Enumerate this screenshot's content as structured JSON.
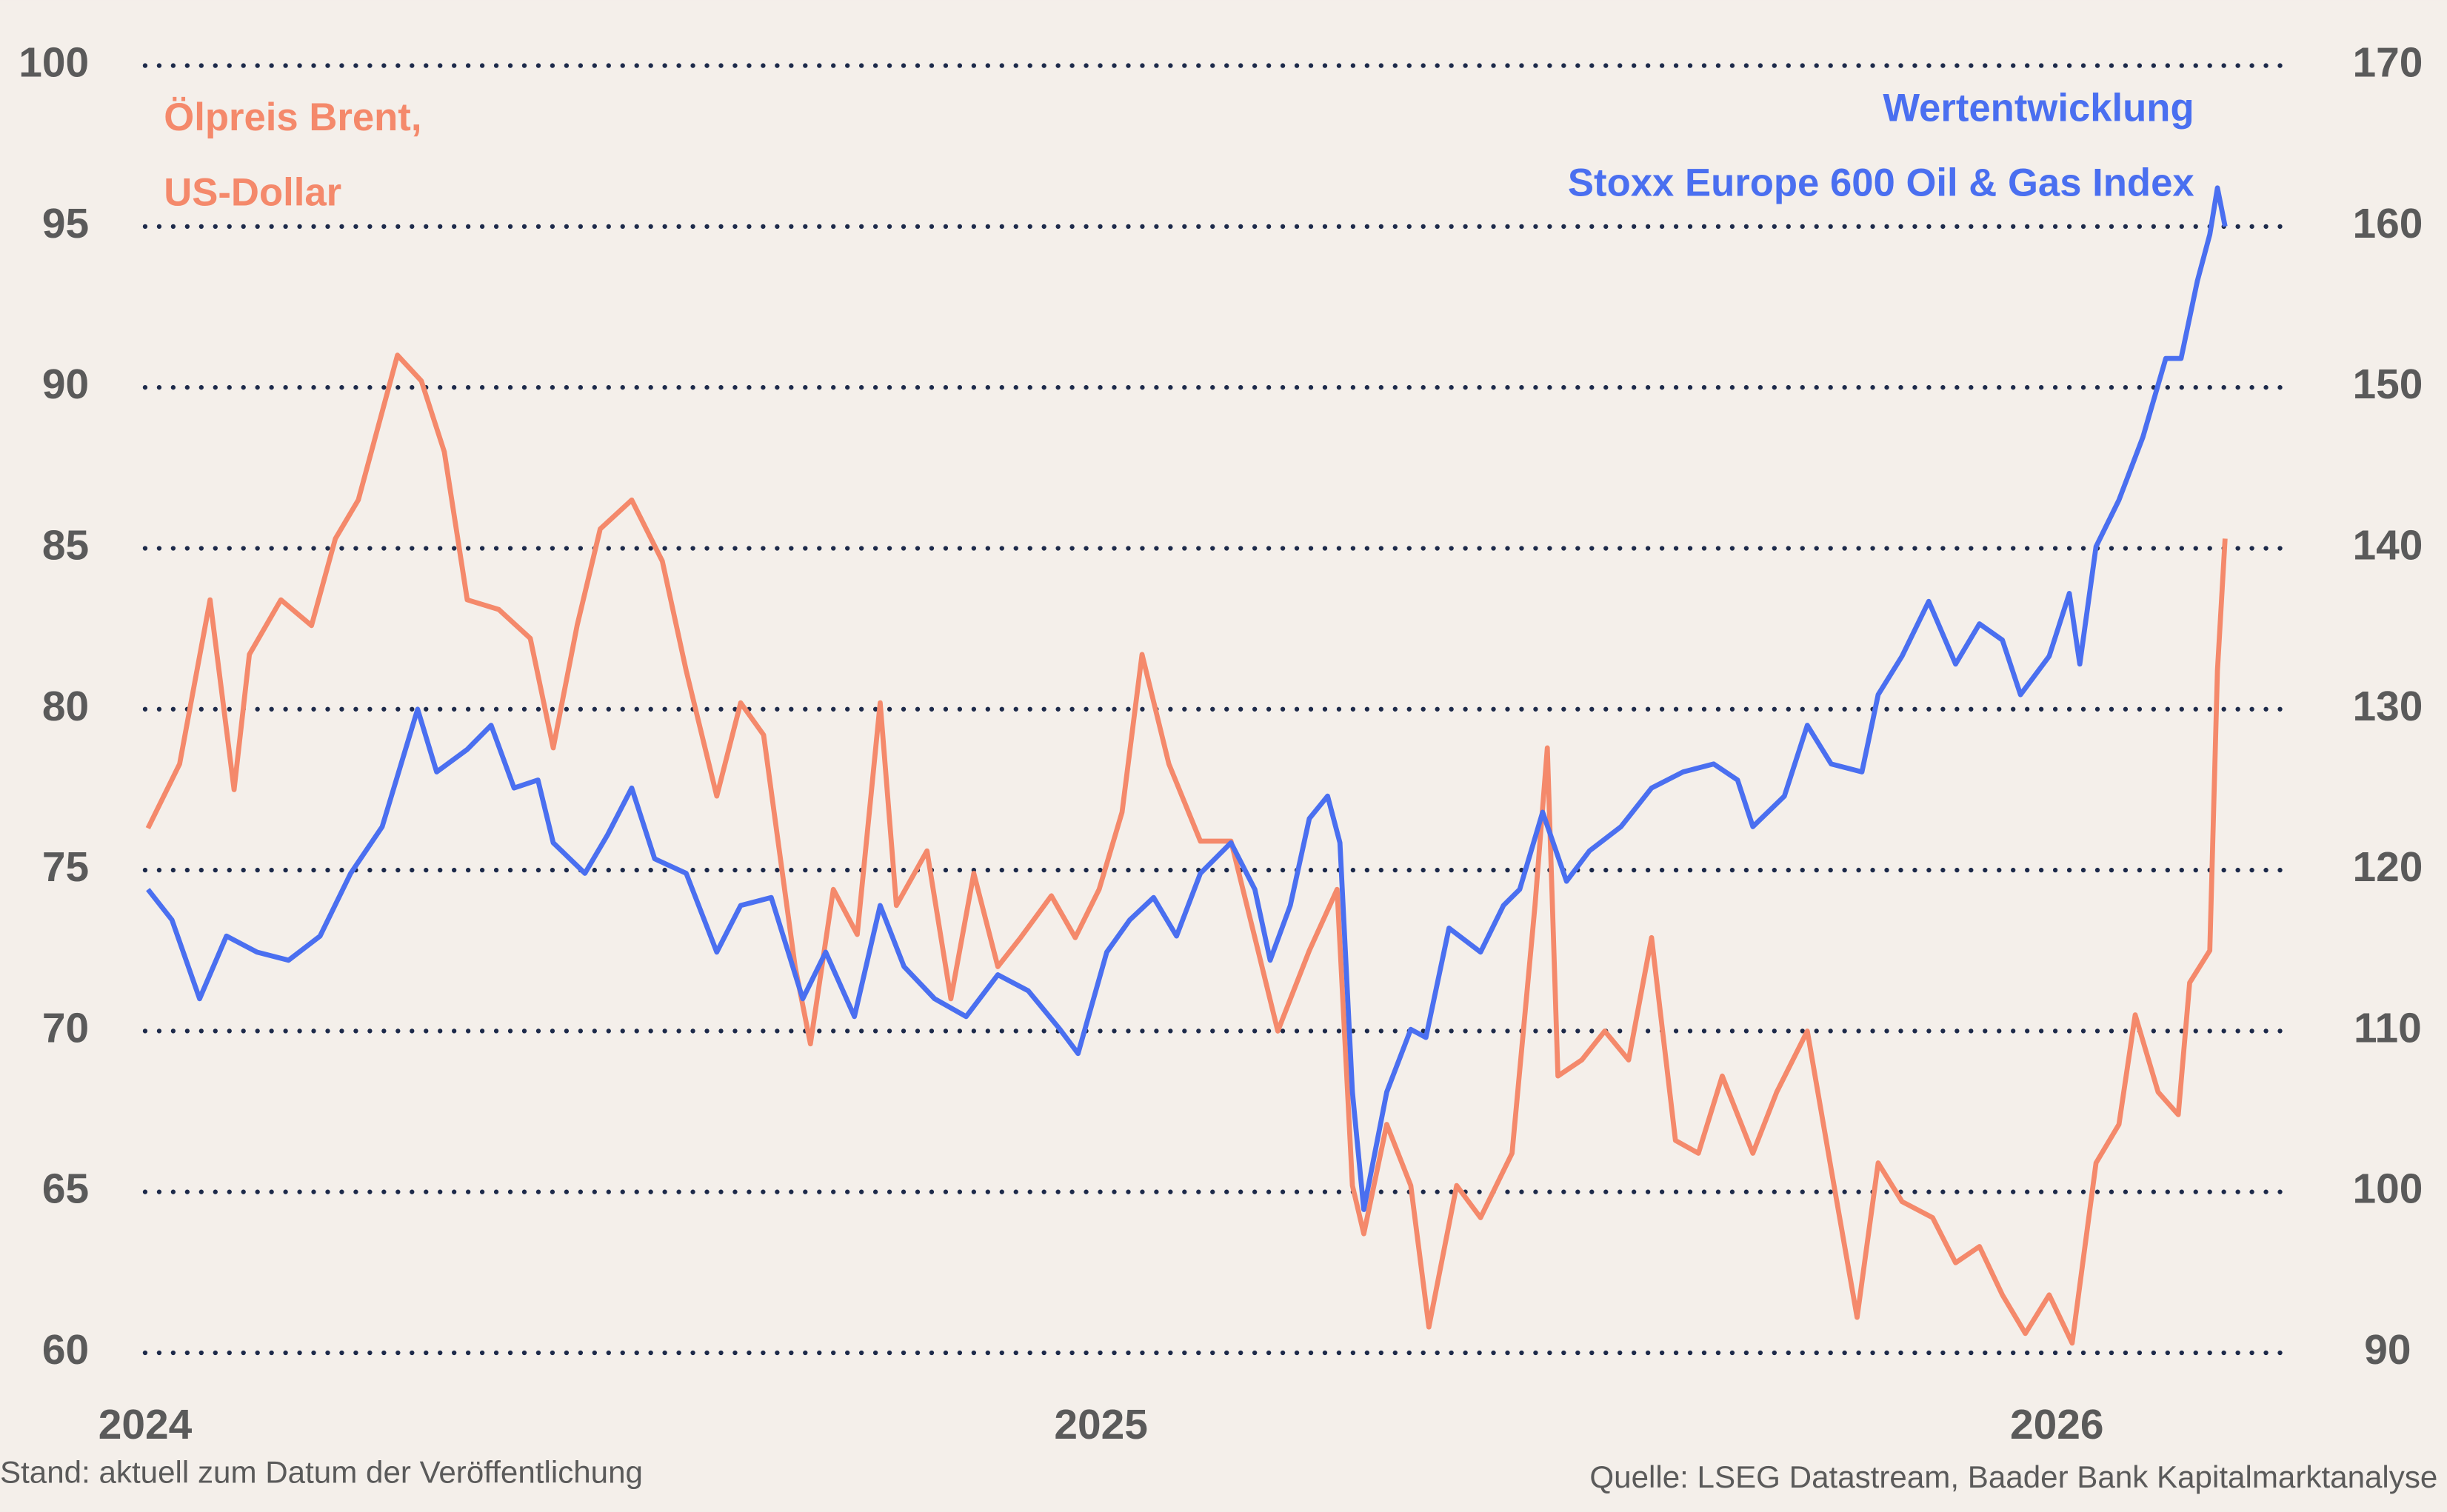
{
  "chart_data": {
    "type": "line",
    "title_lines_left": [
      "Ölpreis Brent,",
      "US-Dollar"
    ],
    "title_lines_right": [
      "Wertentwicklung",
      "Stoxx Europe 600 Oil & Gas Index"
    ],
    "footnote_left": "Stand: aktuell zum Datum der Veröffentlichung",
    "footnote_right": "Quelle: LSEG Datastream, Baader Bank Kapitalmarktanalyse",
    "xlim": [
      2024,
      2026.24
    ],
    "xticks": [
      2024,
      2025,
      2026
    ],
    "ylim": [
      60,
      100
    ],
    "yticks": [
      60,
      65,
      70,
      75,
      80,
      85,
      90,
      95,
      100
    ],
    "y2lim": [
      90,
      170
    ],
    "y2ticks": [
      90,
      100,
      110,
      120,
      130,
      140,
      150,
      160,
      170
    ],
    "grid": true,
    "grid_color": "#1d2a4a",
    "series": [
      {
        "name": [
          "Ölpreis Brent,",
          "US-Dollar"
        ],
        "color": "#f4896b",
        "axis": "y",
        "x": [
          2024.003,
          2024.036,
          2024.068,
          2024.093,
          2024.109,
          2024.142,
          2024.174,
          2024.199,
          2024.223,
          2024.264,
          2024.289,
          2024.313,
          2024.337,
          2024.37,
          2024.403,
          2024.427,
          2024.452,
          2024.476,
          2024.509,
          2024.541,
          2024.566,
          2024.598,
          2024.623,
          2024.647,
          2024.68,
          2024.696,
          2024.72,
          2024.745,
          2024.769,
          2024.786,
          2024.818,
          2024.843,
          2024.867,
          2024.892,
          2024.916,
          2024.948,
          2024.973,
          2024.998,
          2025.022,
          2025.043,
          2025.071,
          2025.104,
          2025.136,
          2025.161,
          2025.185,
          2025.218,
          2025.247,
          2025.263,
          2025.275,
          2025.299,
          2025.324,
          2025.343,
          2025.372,
          2025.397,
          2025.43,
          2025.454,
          2025.467,
          2025.478,
          2025.503,
          2025.527,
          2025.552,
          2025.576,
          2025.601,
          2025.625,
          2025.65,
          2025.682,
          2025.707,
          2025.739,
          2025.764,
          2025.791,
          2025.813,
          2025.838,
          2025.87,
          2025.894,
          2025.919,
          2025.943,
          2025.967,
          2025.992,
          2026.016,
          2026.041,
          2026.065,
          2026.082,
          2026.106,
          2026.127,
          2026.139,
          2026.16,
          2026.168,
          2026.176
        ],
        "values": [
          76.3,
          78.3,
          83.4,
          77.5,
          81.7,
          83.4,
          82.6,
          85.3,
          86.5,
          91.0,
          90.2,
          88.0,
          83.4,
          83.1,
          82.2,
          78.8,
          82.6,
          85.6,
          86.5,
          84.6,
          81.2,
          77.3,
          80.2,
          79.2,
          72.0,
          69.6,
          74.4,
          73.0,
          80.2,
          73.9,
          75.6,
          71.0,
          74.9,
          72.0,
          72.9,
          74.2,
          72.9,
          74.4,
          76.8,
          81.7,
          78.3,
          75.9,
          75.9,
          72.9,
          70.0,
          72.5,
          74.4,
          65.2,
          63.7,
          67.1,
          65.2,
          60.8,
          65.2,
          64.2,
          66.2,
          73.9,
          78.8,
          68.6,
          69.1,
          70.0,
          69.1,
          72.9,
          66.6,
          66.2,
          68.6,
          66.2,
          68.1,
          70.0,
          65.7,
          61.1,
          65.9,
          64.7,
          64.2,
          62.8,
          63.3,
          61.8,
          60.6,
          61.8,
          60.3,
          65.9,
          67.1,
          70.5,
          68.1,
          67.4,
          71.5,
          72.5,
          81.2,
          85.3
        ]
      },
      {
        "name": [
          "Wertentwicklung",
          "Stoxx Europe 600 Oil & Gas Index"
        ],
        "color": "#4a6ff0",
        "axis": "y2",
        "x": [
          2024.003,
          2024.028,
          2024.057,
          2024.085,
          2024.117,
          2024.15,
          2024.183,
          2024.215,
          2024.248,
          2024.285,
          2024.305,
          2024.337,
          2024.362,
          2024.386,
          2024.411,
          2024.427,
          2024.46,
          2024.484,
          2024.509,
          2024.533,
          2024.566,
          2024.598,
          2024.623,
          2024.655,
          2024.688,
          2024.712,
          2024.742,
          2024.769,
          2024.794,
          2024.826,
          2024.859,
          2024.892,
          2024.924,
          2024.957,
          2024.976,
          2025.006,
          2025.03,
          2025.055,
          2025.079,
          2025.104,
          2025.136,
          2025.161,
          2025.177,
          2025.198,
          2025.218,
          2025.237,
          2025.25,
          2025.263,
          2025.275,
          2025.299,
          2025.324,
          2025.34,
          2025.364,
          2025.397,
          2025.421,
          2025.438,
          2025.462,
          2025.487,
          2025.511,
          2025.544,
          2025.576,
          2025.609,
          2025.641,
          2025.666,
          2025.682,
          2025.715,
          2025.739,
          2025.764,
          2025.796,
          2025.813,
          2025.838,
          2025.866,
          2025.894,
          2025.919,
          2025.943,
          2025.962,
          2025.992,
          2026.013,
          2026.024,
          2026.041,
          2026.065,
          2026.09,
          2026.114,
          2026.13,
          2026.147,
          2026.16,
          2026.168,
          2026.176
        ],
        "values": [
          118.8,
          116.9,
          112.0,
          115.9,
          114.9,
          114.4,
          115.9,
          119.8,
          122.7,
          130.0,
          126.1,
          127.5,
          129.0,
          125.1,
          125.6,
          121.7,
          119.8,
          122.2,
          125.1,
          120.7,
          119.8,
          114.9,
          117.8,
          118.3,
          112.0,
          114.9,
          110.9,
          117.8,
          114.0,
          112.0,
          110.9,
          113.5,
          112.5,
          110.1,
          108.6,
          114.9,
          116.9,
          118.3,
          115.9,
          119.8,
          121.7,
          118.8,
          114.4,
          117.8,
          123.2,
          124.6,
          121.7,
          106.2,
          98.9,
          106.2,
          110.1,
          109.6,
          116.4,
          114.9,
          117.8,
          118.8,
          123.6,
          119.3,
          121.2,
          122.7,
          125.1,
          126.1,
          126.6,
          125.6,
          122.7,
          124.6,
          129.0,
          126.6,
          126.1,
          130.9,
          133.3,
          136.7,
          132.8,
          135.3,
          134.3,
          130.9,
          133.3,
          137.2,
          132.8,
          140.1,
          143.0,
          146.9,
          151.8,
          151.8,
          156.6,
          159.5,
          162.4,
          160.0
        ]
      }
    ]
  }
}
